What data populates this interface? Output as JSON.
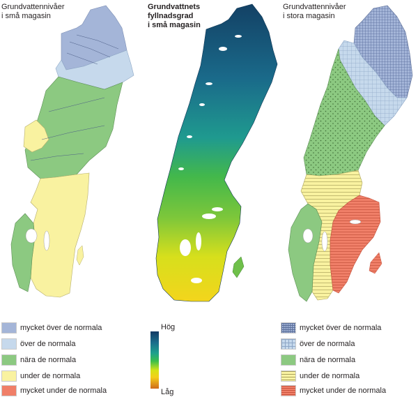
{
  "titles": {
    "small_levels": "Grundvattennivåer\ni små magasin",
    "fill_degree": "Grundvattnets\nfyllnadsgrad\ni små magasin",
    "large_levels": "Grundvattennivåer\ni stora magasin"
  },
  "colors": {
    "very_above": "#a4b5d8",
    "above": "#c6d9ec",
    "near": "#8cc981",
    "below": "#f9f2a0",
    "very_below": "#f07f68"
  },
  "legend_left": [
    {
      "label": "mycket över de normala",
      "color": "#a4b5d8"
    },
    {
      "label": "över de normala",
      "color": "#c6d9ec"
    },
    {
      "label": "nära de normala",
      "color": "#8cc981"
    },
    {
      "label": "under de normala",
      "color": "#f9f2a0"
    },
    {
      "label": "mycket under de normala",
      "color": "#f07f68"
    }
  ],
  "legend_right": [
    {
      "label": "mycket över de normala",
      "pattern": "grid-dense"
    },
    {
      "label": "över de normala",
      "pattern": "grid"
    },
    {
      "label": "nära de normala",
      "pattern": "plain"
    },
    {
      "label": "under de normala",
      "pattern": "horizontal-lines"
    },
    {
      "label": "mycket under de normala",
      "pattern": "horizontal-lines"
    }
  ],
  "gradient_legend": {
    "high": "Hög",
    "low": "Låg"
  }
}
